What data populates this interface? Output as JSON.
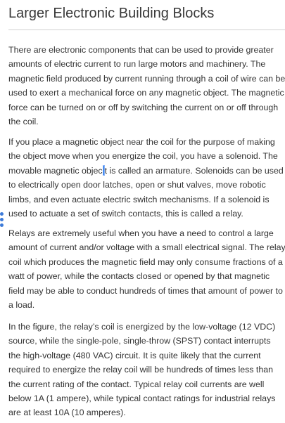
{
  "article": {
    "title": "Larger Electronic Building Blocks",
    "paragraphs": [
      {
        "lines": [
          "There are electronic components that can be used to provide greater",
          "amounts of electric current to run large motors and machinery. The",
          "magnetic field produced by current running through a coil of wire can be",
          "used to exert a mechanical force on any magnetic object. The magnetic",
          "force can be turned on or off by switching the current on or off through",
          "the coil."
        ]
      },
      {
        "lines": [
          "If you place a magnetic object near the coil for the purpose of making",
          "the object move when you energize the coil, you have a solenoid. The",
          "movable magnetic objec",
          "to electrically open door latches, open or shut valves, move robotic",
          "limbs, and even actuate electric switch mechanisms. If a solenoid is",
          "used to actuate a set of switch contacts, this is called a relay."
        ],
        "caret_line_tail": "t is called an armature. Solenoids can be used"
      },
      {
        "lines": [
          "Relays are extremely useful when you have a need to control a large",
          "amount of current and/or voltage with a small electrical signal. The relay",
          "coil which produces the magnetic field may only consume fractions of a",
          "watt of power, while the contacts closed or opened by that magnetic",
          "field may be able to conduct hundreds of times that amount of power to",
          "a load."
        ]
      },
      {
        "lines": [
          "In the figure, the relay’s coil is energized by the low-voltage (12 VDC)",
          "source, while the single-pole, single-throw (SPST) contact interrupts",
          "the high-voltage (480 VAC) circuit. It is quite likely that the current",
          "required to energize the relay coil will be hundreds of times less than",
          "the current rating of the contact. Typical relay coil currents are well",
          "below 1A (1 ampere), while typical contact ratings for industrial relays",
          "are at least 10A (10 amperes)."
        ]
      }
    ]
  },
  "colors": {
    "text": "#333333",
    "caret": "#1a73e8",
    "side_handle": "#3d7bd9"
  }
}
